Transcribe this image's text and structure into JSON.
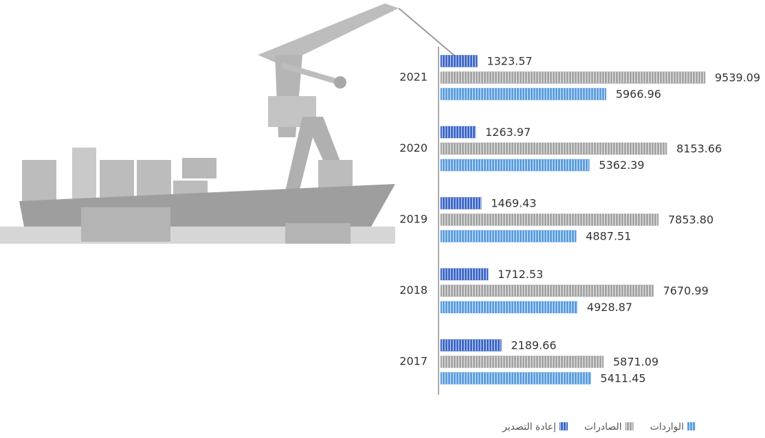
{
  "chart_data": {
    "type": "bar",
    "orientation": "horizontal",
    "categories": [
      "2021",
      "2020",
      "2019",
      "2018",
      "2017"
    ],
    "series": [
      {
        "name": "إعادة التصدير",
        "color": "#3e68c9",
        "values": [
          1323.57,
          1263.97,
          1469.43,
          1712.53,
          2189.66
        ],
        "value_labels": [
          "1323.57",
          "1263.97",
          "1469.43",
          "1712.53",
          "2189.66"
        ]
      },
      {
        "name": "الصادرات",
        "color": "#a5a5a5",
        "values": [
          9539.09,
          8153.66,
          7853.8,
          7670.99,
          5871.09
        ],
        "value_labels": [
          "9539.09",
          "8153.66",
          "7853.80",
          "7670.99",
          "5871.09"
        ]
      },
      {
        "name": "الواردات",
        "color": "#5b9ee0",
        "values": [
          5966.96,
          5362.39,
          4887.51,
          4928.87,
          5411.45
        ],
        "value_labels": [
          "5966.96",
          "5362.39",
          "4887.51",
          "4928.87",
          "5411.45"
        ]
      }
    ]
  }
}
